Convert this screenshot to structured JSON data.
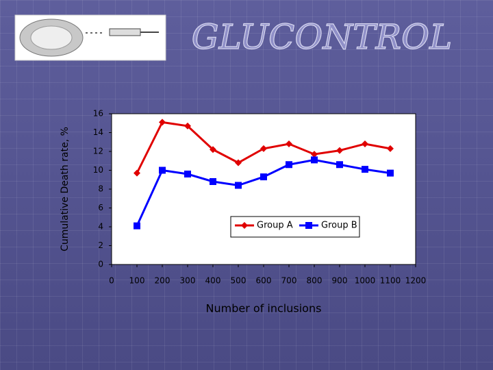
{
  "chart_data": {
    "type": "line",
    "title": "GLUCONTROL",
    "x_label": "Number of inclusions",
    "y_label": "Cumulative Death rate, %",
    "x": [
      100,
      200,
      300,
      400,
      500,
      600,
      700,
      800,
      900,
      1000,
      1100
    ],
    "series": [
      {
        "name": "Group A",
        "color": "#e00000",
        "marker": "diamond",
        "values": [
          9.7,
          15.1,
          14.7,
          12.2,
          10.8,
          12.3,
          12.8,
          11.7,
          12.1,
          12.8,
          12.3
        ]
      },
      {
        "name": "Group B",
        "color": "#0000ff",
        "marker": "square",
        "values": [
          4.1,
          10.0,
          9.6,
          8.8,
          8.4,
          9.3,
          10.6,
          11.1,
          10.6,
          10.1,
          9.7
        ]
      }
    ],
    "xlim": [
      0,
      1200
    ],
    "xticks": [
      0,
      100,
      200,
      300,
      400,
      500,
      600,
      700,
      800,
      900,
      1000,
      1100,
      1200
    ],
    "ylim": [
      0,
      16
    ],
    "yticks": [
      0,
      2,
      4,
      6,
      8,
      10,
      12,
      14,
      16
    ],
    "grid": false,
    "legend": "inside-right"
  }
}
